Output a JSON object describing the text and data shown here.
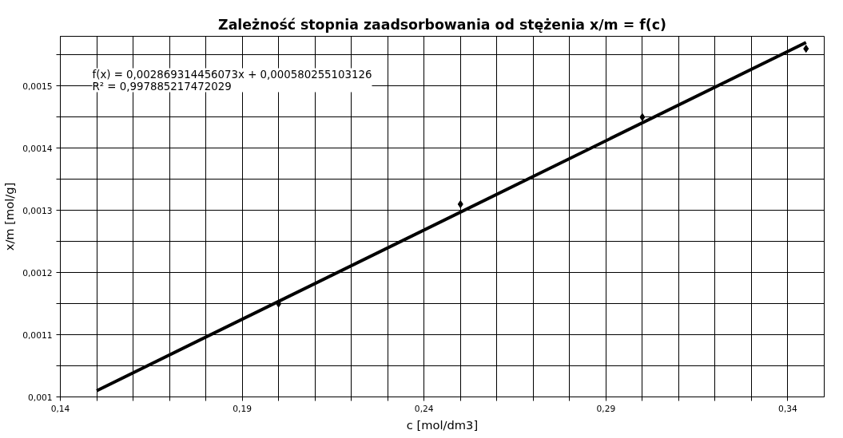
{
  "chart_data": {
    "type": "scatter",
    "title": "Zależność stopnia zaadsorbowania od stężenia x/m = f(c)",
    "xlabel": "c [mol/dm3]",
    "ylabel": "x/m [mol/g]",
    "annotations": [
      "f(x) = 0,002869314456073x + 0,000580255103126",
      "R² = 0,997885217472029"
    ],
    "series": [
      {
        "color": "#000000",
        "marker": "diamond",
        "x": [
          0.2,
          0.25,
          0.3,
          0.345
        ],
        "values": [
          0.00115,
          0.00131,
          0.00145,
          0.00156
        ]
      },
      {
        "type": "line",
        "color": "#000000",
        "line_style": "solid",
        "x": [
          0.15,
          0.345
        ],
        "values": [
          0.00101,
          0.00157
        ]
      }
    ],
    "xlim": [
      0.14,
      0.35
    ],
    "ylim": [
      0.001,
      0.00158
    ],
    "xticks": [
      {
        "value": 0.14,
        "label": "0,14"
      },
      {
        "value": 0.15,
        "label": null
      },
      {
        "value": 0.16,
        "label": null
      },
      {
        "value": 0.17,
        "label": null
      },
      {
        "value": 0.18,
        "label": null
      },
      {
        "value": 0.19,
        "label": "0,19"
      },
      {
        "value": 0.2,
        "label": null
      },
      {
        "value": 0.21,
        "label": null
      },
      {
        "value": 0.22,
        "label": null
      },
      {
        "value": 0.23,
        "label": null
      },
      {
        "value": 0.24,
        "label": "0,24"
      },
      {
        "value": 0.25,
        "label": null
      },
      {
        "value": 0.26,
        "label": null
      },
      {
        "value": 0.27,
        "label": null
      },
      {
        "value": 0.28,
        "label": null
      },
      {
        "value": 0.29,
        "label": "0,29"
      },
      {
        "value": 0.3,
        "label": null
      },
      {
        "value": 0.31,
        "label": null
      },
      {
        "value": 0.32,
        "label": null
      },
      {
        "value": 0.33,
        "label": null
      },
      {
        "value": 0.34,
        "label": "0,34"
      }
    ],
    "yticks": [
      {
        "value": 0.001,
        "label": "0,001"
      },
      {
        "value": 0.00105,
        "label": null
      },
      {
        "value": 0.0011,
        "label": "0,0011"
      },
      {
        "value": 0.00115,
        "label": null
      },
      {
        "value": 0.0012,
        "label": "0,0012"
      },
      {
        "value": 0.00125,
        "label": null
      },
      {
        "value": 0.0013,
        "label": "0,0013"
      },
      {
        "value": 0.00135,
        "label": null
      },
      {
        "value": 0.0014,
        "label": "0,0014"
      },
      {
        "value": 0.00145,
        "label": null
      },
      {
        "value": 0.0015,
        "label": "0,0015"
      },
      {
        "value": 0.00155,
        "label": null
      }
    ],
    "grid": true
  }
}
